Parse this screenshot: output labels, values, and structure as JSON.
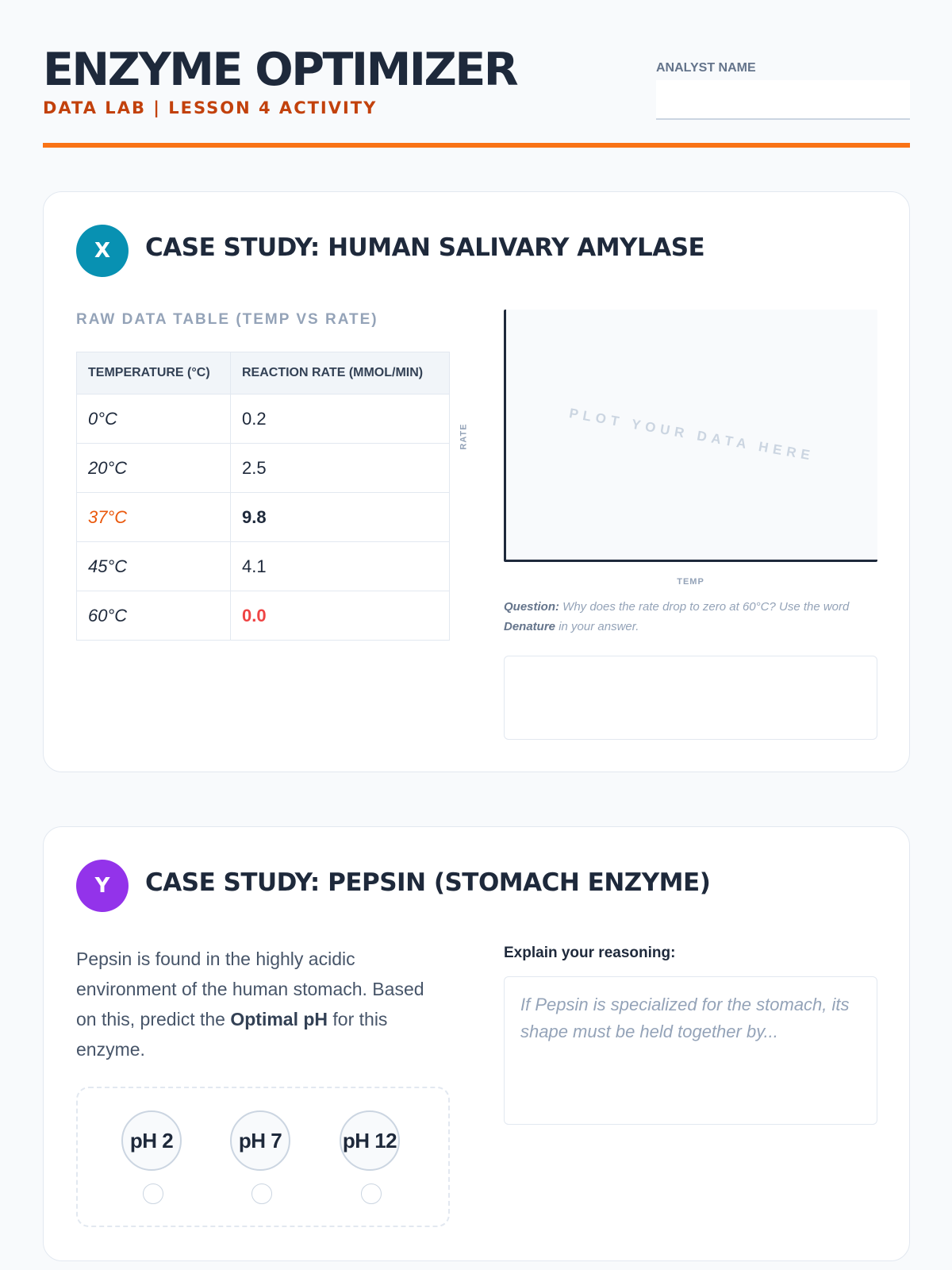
{
  "header": {
    "title": "ENZYME OPTIMIZER",
    "subtitle": "DATA LAB | LESSON 4 ACTIVITY",
    "analyst_label": "ANALYST NAME",
    "analyst_value": ""
  },
  "colors": {
    "accent": "#f97316",
    "badge_x": "#0891b2",
    "badge_y": "#9333ea",
    "highlight": "#ea580c",
    "danger": "#ef4444"
  },
  "case_x": {
    "badge": "X",
    "title": "CASE STUDY: HUMAN SALIVARY AMYLASE",
    "table_label": "RAW DATA TABLE (TEMP VS RATE)",
    "columns": [
      "TEMPERATURE (°C)",
      "REACTION RATE (MMOL/MIN)"
    ],
    "rows": [
      {
        "temp": "0°C",
        "rate": "0.2"
      },
      {
        "temp": "20°C",
        "rate": "2.5"
      },
      {
        "temp": "37°C",
        "rate": "9.8",
        "highlight": true
      },
      {
        "temp": "45°C",
        "rate": "4.1"
      },
      {
        "temp": "60°C",
        "rate": "0.0",
        "danger": true
      }
    ],
    "plot_placeholder": "PLOT YOUR DATA HERE",
    "y_axis_label": "RATE",
    "x_axis_label": "TEMP",
    "question_label": "Question:",
    "question_text_1": "Why does the rate drop to zero at 60°C? Use the word",
    "question_keyword": "Denature",
    "question_text_2": "in your answer.",
    "answer_value": ""
  },
  "case_y": {
    "badge": "Y",
    "title": "CASE STUDY: PEPSIN (STOMACH ENZYME)",
    "desc_1": "Pepsin is found in the highly acidic environment of the human stomach. Based on this, predict the",
    "desc_bold": "Optimal pH",
    "desc_2": "for this enzyme.",
    "options": [
      "pH 2",
      "pH 7",
      "pH 12"
    ],
    "reason_label": "Explain your reasoning:",
    "reason_placeholder": "If Pepsin is specialized for the stomach, its shape must be held together by..."
  }
}
